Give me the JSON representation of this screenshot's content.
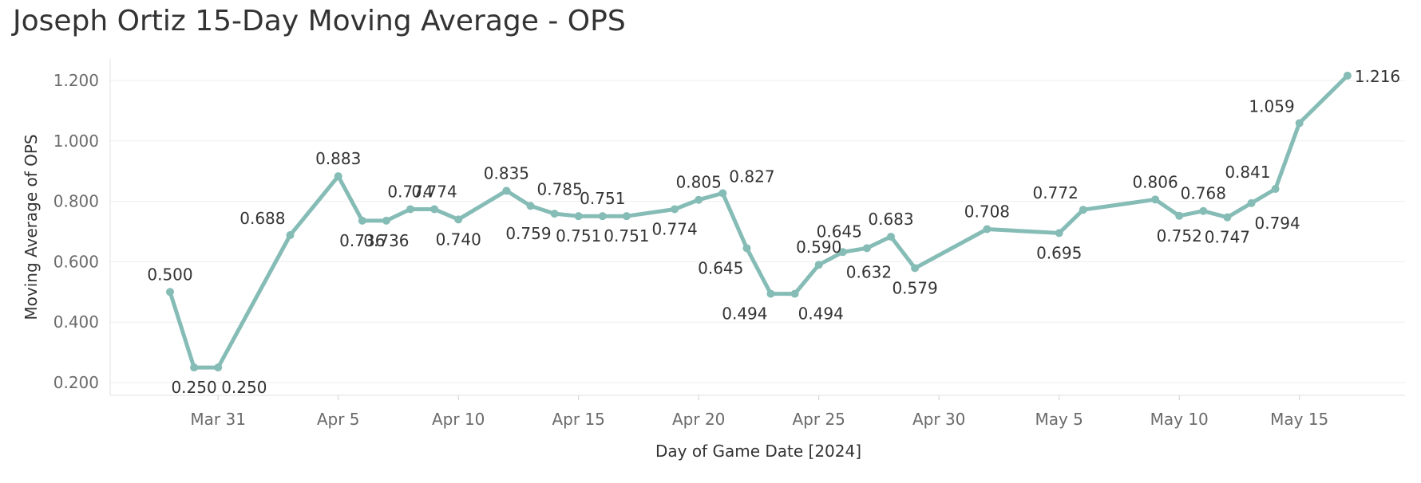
{
  "chart_data": {
    "type": "line",
    "title": "Joseph Ortiz 15-Day Moving Average - OPS",
    "xlabel": "Day of Game Date [2024]",
    "ylabel": "Moving Average of OPS",
    "color": "#86bcb6",
    "grid": true,
    "ylim": [
      0.15,
      1.25
    ],
    "y_ticks": [
      {
        "value": 0.2,
        "label": "0.200"
      },
      {
        "value": 0.4,
        "label": "0.400"
      },
      {
        "value": 0.6,
        "label": "0.600"
      },
      {
        "value": 0.8,
        "label": "0.800"
      },
      {
        "value": 1.0,
        "label": "1.000"
      },
      {
        "value": 1.2,
        "label": "1.200"
      }
    ],
    "x_ticks": [
      {
        "day": 3,
        "label": "Mar 31"
      },
      {
        "day": 8,
        "label": "Apr 5"
      },
      {
        "day": 13,
        "label": "Apr 10"
      },
      {
        "day": 18,
        "label": "Apr 15"
      },
      {
        "day": 23,
        "label": "Apr 20"
      },
      {
        "day": 28,
        "label": "Apr 25"
      },
      {
        "day": 33,
        "label": "Apr 30"
      },
      {
        "day": 38,
        "label": "May 5"
      },
      {
        "day": 43,
        "label": "May 10"
      },
      {
        "day": 48,
        "label": "May 15"
      }
    ],
    "points": [
      {
        "day": 1,
        "value": 0.5,
        "label": "0.500",
        "pos": "above"
      },
      {
        "day": 2,
        "value": 0.25,
        "label": "0.250",
        "pos": "below"
      },
      {
        "day": 3,
        "value": 0.25,
        "label": "0.250",
        "pos": "below-right"
      },
      {
        "day": 6,
        "value": 0.688,
        "label": "0.688",
        "pos": "above-left"
      },
      {
        "day": 8,
        "value": 0.883,
        "label": "0.883",
        "pos": "above"
      },
      {
        "day": 9,
        "value": 0.736,
        "label": "0.736",
        "pos": "below"
      },
      {
        "day": 10,
        "value": 0.736,
        "label": "0.736",
        "pos": "below"
      },
      {
        "day": 11,
        "value": 0.774,
        "label": "0.774",
        "pos": "above"
      },
      {
        "day": 12,
        "value": 0.774,
        "label": "0.774",
        "pos": "above"
      },
      {
        "day": 13,
        "value": 0.74,
        "label": "0.740",
        "pos": "below"
      },
      {
        "day": 15,
        "value": 0.835,
        "label": "0.835",
        "pos": "above"
      },
      {
        "day": 16,
        "value": 0.785,
        "label": "0.785",
        "pos": "above-right"
      },
      {
        "day": 17,
        "value": 0.759,
        "label": "0.759",
        "pos": "below-left"
      },
      {
        "day": 18,
        "value": 0.751,
        "label": "0.751",
        "pos": "below"
      },
      {
        "day": 19,
        "value": 0.751,
        "label": "0.751",
        "pos": "above"
      },
      {
        "day": 20,
        "value": 0.751,
        "label": "0.751",
        "pos": "below"
      },
      {
        "day": 22,
        "value": 0.774,
        "label": "0.774",
        "pos": "below"
      },
      {
        "day": 23,
        "value": 0.805,
        "label": "0.805",
        "pos": "above"
      },
      {
        "day": 24,
        "value": 0.827,
        "label": "0.827",
        "pos": "above-right"
      },
      {
        "day": 25,
        "value": 0.645,
        "label": "0.645",
        "pos": "below-left"
      },
      {
        "day": 26,
        "value": 0.494,
        "label": "0.494",
        "pos": "below-left"
      },
      {
        "day": 27,
        "value": 0.494,
        "label": "0.494",
        "pos": "below-right"
      },
      {
        "day": 28,
        "value": 0.59,
        "label": "0.590",
        "pos": "above"
      },
      {
        "day": 29,
        "value": 0.632,
        "label": "0.632",
        "pos": "below-right"
      },
      {
        "day": 30,
        "value": 0.645,
        "label": "0.645",
        "pos": "above-left"
      },
      {
        "day": 31,
        "value": 0.683,
        "label": "0.683",
        "pos": "above"
      },
      {
        "day": 32,
        "value": 0.579,
        "label": "0.579",
        "pos": "below"
      },
      {
        "day": 35,
        "value": 0.708,
        "label": "0.708",
        "pos": "above"
      },
      {
        "day": 38,
        "value": 0.695,
        "label": "0.695",
        "pos": "below"
      },
      {
        "day": 39,
        "value": 0.772,
        "label": "0.772",
        "pos": "above-left"
      },
      {
        "day": 42,
        "value": 0.806,
        "label": "0.806",
        "pos": "above"
      },
      {
        "day": 43,
        "value": 0.752,
        "label": "0.752",
        "pos": "below"
      },
      {
        "day": 44,
        "value": 0.768,
        "label": "0.768",
        "pos": "above"
      },
      {
        "day": 45,
        "value": 0.747,
        "label": "0.747",
        "pos": "below"
      },
      {
        "day": 46,
        "value": 0.794,
        "label": "0.794",
        "pos": "below-right"
      },
      {
        "day": 47,
        "value": 0.841,
        "label": "0.841",
        "pos": "above-left"
      },
      {
        "day": 48,
        "value": 1.059,
        "label": "1.059",
        "pos": "above-left"
      },
      {
        "day": 50,
        "value": 1.216,
        "label": "1.216",
        "pos": "right"
      }
    ]
  }
}
